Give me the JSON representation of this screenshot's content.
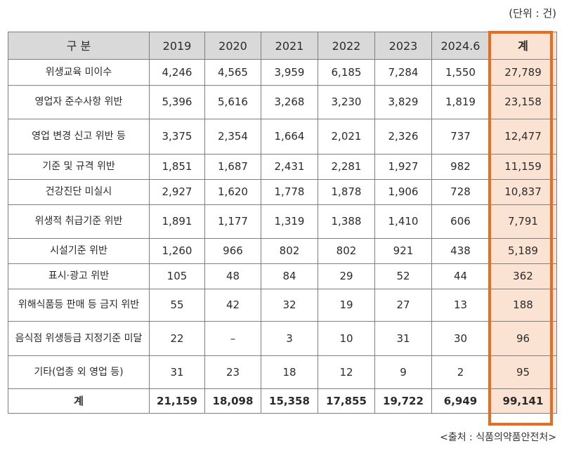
{
  "unit_note": "(단위 : 건)",
  "source_note": "<출처 : 식품의약품안전처>",
  "columns": [
    "구 분",
    "2019",
    "2020",
    "2021",
    "2022",
    "2023",
    "2024.6",
    "계"
  ],
  "rows": [
    {
      "label": "위생교육 미이수",
      "values": [
        "4,246",
        "4,565",
        "3,959",
        "6,185",
        "7,284",
        "1,550",
        "27,789"
      ]
    },
    {
      "label": "영업자 준수사항 위반",
      "values": [
        "5,396",
        "5,616",
        "3,268",
        "3,230",
        "3,829",
        "1,819",
        "23,158"
      ]
    },
    {
      "label": "영업 변경 신고 위반 등",
      "values": [
        "3,375",
        "2,354",
        "1,664",
        "2,021",
        "2,326",
        "737",
        "12,477"
      ]
    },
    {
      "label": "기준 및 규격 위반",
      "values": [
        "1,851",
        "1,687",
        "2,431",
        "2,281",
        "1,927",
        "982",
        "11,159"
      ]
    },
    {
      "label": "건강진단 미실시",
      "values": [
        "2,927",
        "1,620",
        "1,778",
        "1,878",
        "1,906",
        "728",
        "10,837"
      ]
    },
    {
      "label": "위생적 취급기준 위반",
      "values": [
        "1,891",
        "1,177",
        "1,319",
        "1,388",
        "1,410",
        "606",
        "7,791"
      ]
    },
    {
      "label": "시설기준 위반",
      "values": [
        "1,260",
        "966",
        "802",
        "802",
        "921",
        "438",
        "5,189"
      ]
    },
    {
      "label": "표시·광고 위반",
      "values": [
        "105",
        "48",
        "84",
        "29",
        "52",
        "44",
        "362"
      ]
    },
    {
      "label": "위해식품등 판매 등 금지 위반",
      "values": [
        "55",
        "42",
        "32",
        "19",
        "27",
        "13",
        "188"
      ]
    },
    {
      "label": "음식점 위생등급 지정기준 미달",
      "values": [
        "22",
        "–",
        "3",
        "10",
        "31",
        "30",
        "96"
      ]
    },
    {
      "label": "기타(업종 외 영업 등)",
      "values": [
        "31",
        "23",
        "18",
        "12",
        "9",
        "2",
        "95"
      ]
    }
  ],
  "total": {
    "label": "계",
    "values": [
      "21,159",
      "18,098",
      "15,358",
      "17,855",
      "19,722",
      "6,949",
      "99,141"
    ]
  },
  "highlight_color": "#ea6c1f"
}
